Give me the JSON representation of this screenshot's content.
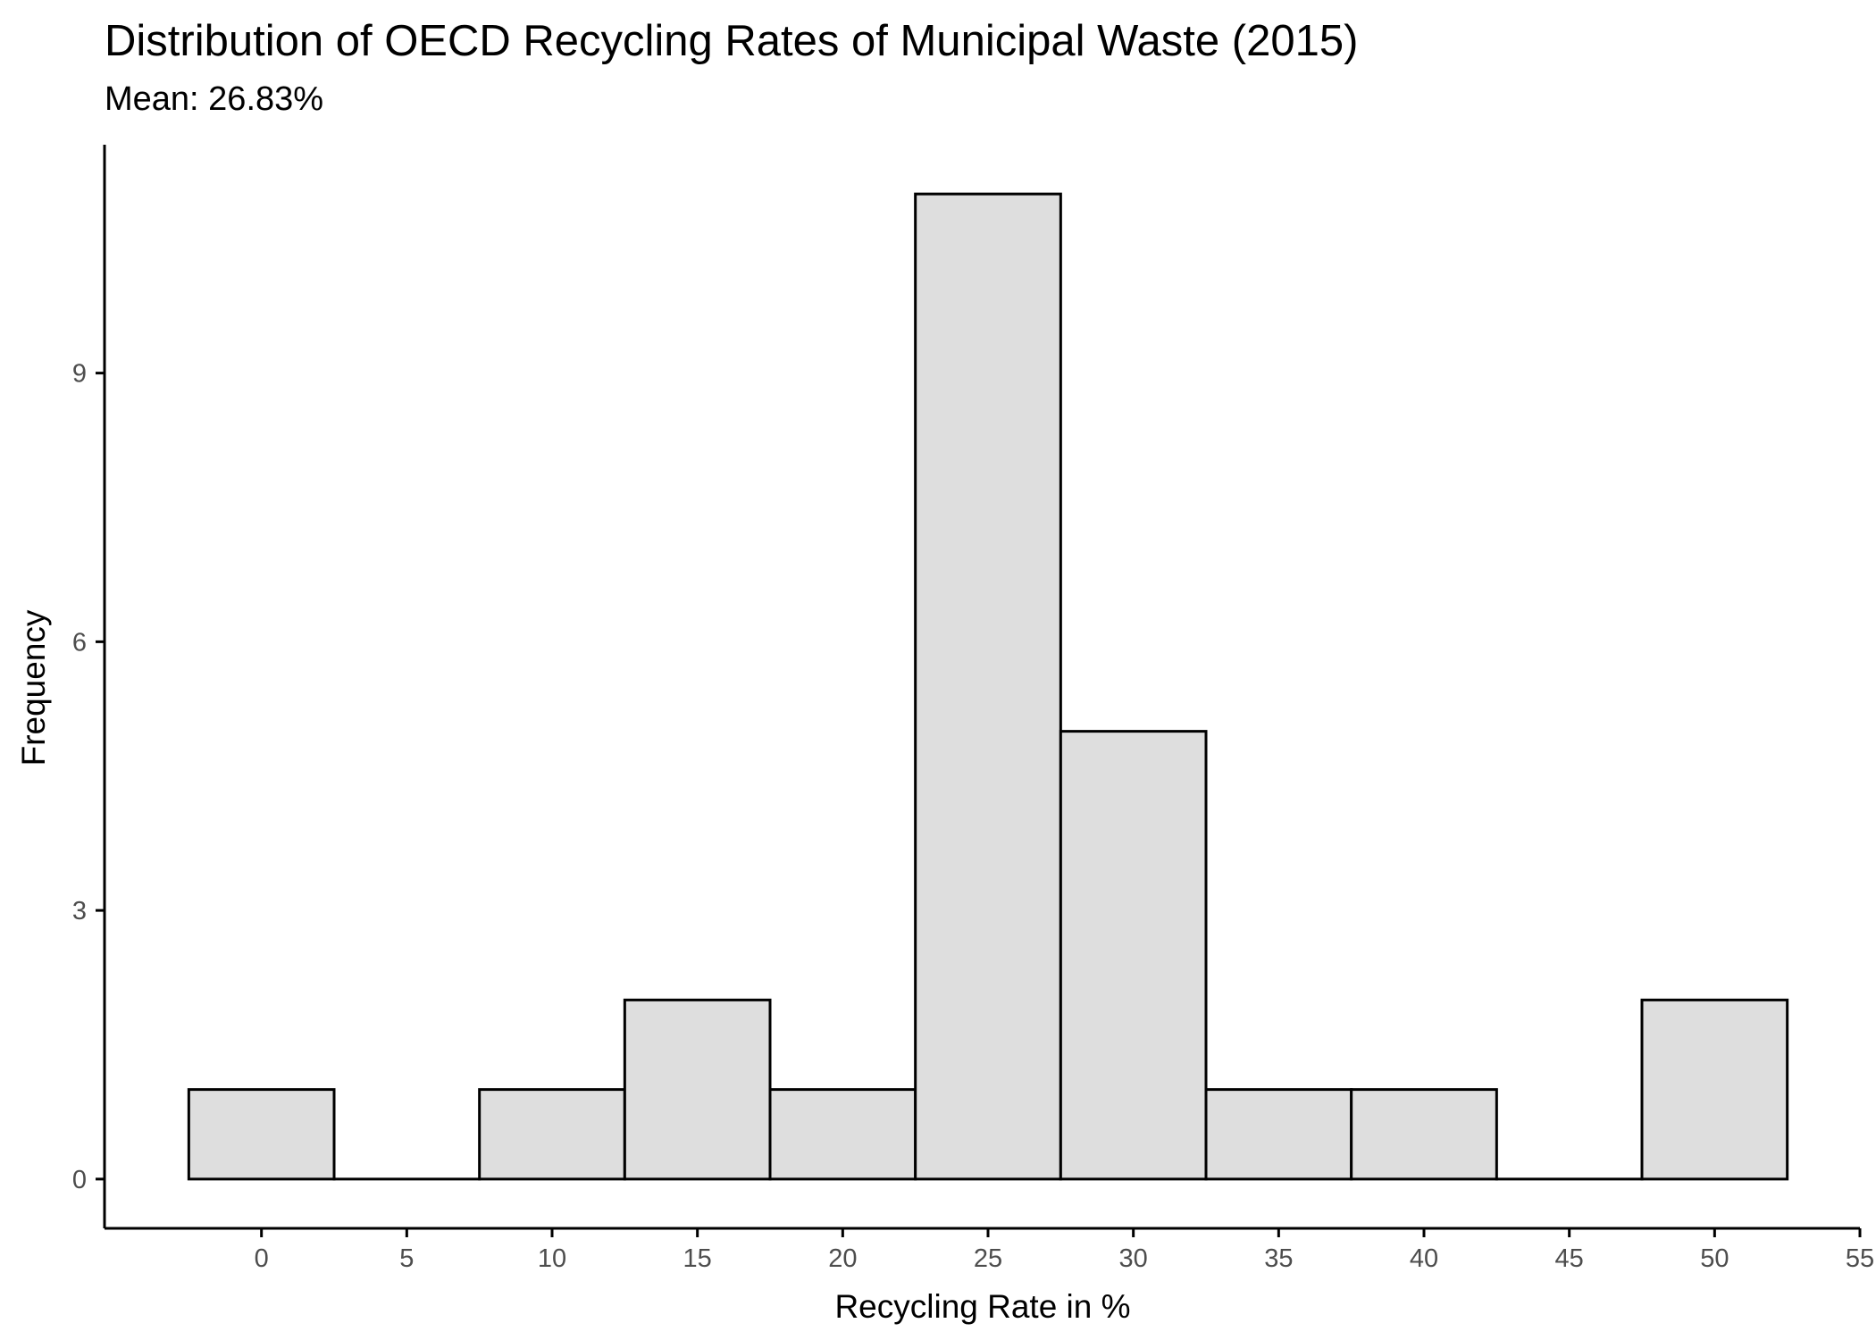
{
  "chart_data": {
    "type": "bar",
    "title": "Distribution of OECD Recycling Rates of Municipal Waste (2015)",
    "subtitle": "Mean: 26.83%",
    "xlabel": "Recycling Rate in %",
    "ylabel": "Frequency",
    "bin_width": 5,
    "bins": [
      {
        "center": 0,
        "count": 1
      },
      {
        "center": 5,
        "count": 0
      },
      {
        "center": 10,
        "count": 1
      },
      {
        "center": 15,
        "count": 2
      },
      {
        "center": 20,
        "count": 1
      },
      {
        "center": 25,
        "count": 11
      },
      {
        "center": 30,
        "count": 5
      },
      {
        "center": 35,
        "count": 1
      },
      {
        "center": 40,
        "count": 1
      },
      {
        "center": 45,
        "count": 0
      },
      {
        "center": 50,
        "count": 2
      }
    ],
    "x_ticks": [
      "0",
      "5",
      "10",
      "15",
      "20",
      "25",
      "30",
      "35",
      "40",
      "45",
      "50",
      "55"
    ],
    "y_ticks": [
      "0",
      "3",
      "6",
      "9"
    ],
    "xlim": [
      -5.4,
      55
    ],
    "ylim": [
      -0.55,
      11.55
    ],
    "grid": false,
    "colors": {
      "bar_fill": "#dedede",
      "bar_stroke": "#000000",
      "axis": "#000000"
    }
  }
}
